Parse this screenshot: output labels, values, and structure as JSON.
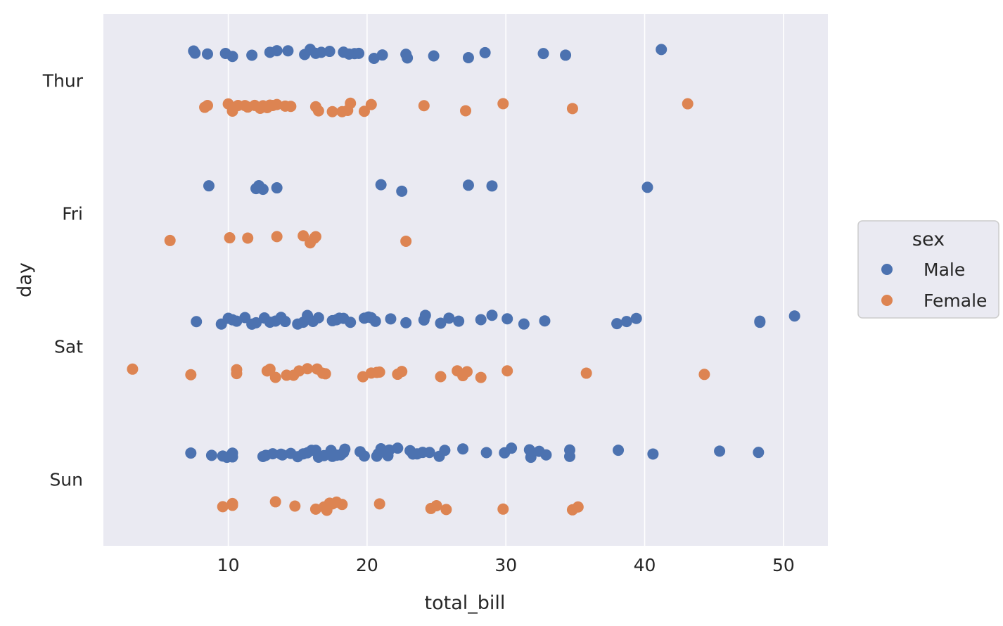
{
  "chart_data": {
    "type": "scatter",
    "subtype": "strip",
    "xlabel": "total_bill",
    "ylabel": "day",
    "xlim": [
      1.0,
      53.2
    ],
    "x_ticks": [
      10,
      20,
      30,
      40,
      50
    ],
    "categories": [
      "Thur",
      "Fri",
      "Sat",
      "Sun"
    ],
    "grid": true,
    "legend": {
      "title": "sex",
      "position": "right"
    },
    "series": [
      {
        "name": "Male",
        "color": "#4c72b0",
        "points": [
          {
            "day": "Thur",
            "x": [
              7.5,
              7.6,
              8.5,
              9.8,
              10.3,
              11.7,
              13.0,
              13.5,
              14.3,
              15.5,
              15.9,
              16.3,
              16.7,
              17.3,
              18.3,
              18.7,
              19.1,
              19.4,
              20.5,
              21.1,
              22.8,
              22.9,
              24.8,
              27.3,
              28.5,
              32.7,
              34.3,
              41.2
            ]
          },
          {
            "day": "Fri",
            "x": [
              8.6,
              12.0,
              12.2,
              12.5,
              13.5,
              21.0,
              22.5,
              27.3,
              29.0,
              40.2
            ]
          },
          {
            "day": "Sat",
            "x": [
              7.7,
              9.5,
              10.0,
              10.3,
              10.6,
              11.2,
              11.7,
              12.0,
              12.6,
              13.0,
              13.4,
              13.8,
              14.1,
              15.0,
              15.4,
              15.7,
              16.1,
              16.5,
              17.5,
              17.8,
              18.0,
              18.3,
              18.8,
              19.8,
              20.1,
              20.3,
              20.6,
              21.7,
              22.8,
              24.1,
              24.2,
              25.3,
              25.9,
              26.6,
              28.2,
              29.0,
              30.1,
              31.3,
              32.8,
              38.0,
              38.7,
              39.4,
              48.3,
              48.3,
              50.8
            ]
          },
          {
            "day": "Sun",
            "x": [
              7.3,
              8.8,
              9.6,
              9.9,
              10.3,
              10.3,
              12.5,
              12.7,
              13.2,
              13.8,
              13.9,
              14.5,
              15.0,
              15.4,
              15.7,
              16.0,
              16.3,
              16.5,
              16.9,
              17.4,
              17.5,
              17.8,
              18.1,
              18.3,
              18.4,
              19.5,
              19.8,
              20.7,
              20.8,
              21.0,
              21.5,
              21.6,
              22.2,
              23.1,
              23.3,
              23.6,
              24.0,
              24.5,
              25.2,
              25.6,
              26.9,
              28.6,
              29.9,
              30.4,
              31.7,
              31.8,
              32.4,
              32.9,
              34.6,
              34.6,
              38.1,
              40.6,
              45.4,
              48.2
            ]
          }
        ]
      },
      {
        "name": "Female",
        "color": "#dd8452",
        "points": [
          {
            "day": "Thur",
            "x": [
              8.3,
              8.5,
              10.0,
              10.3,
              10.7,
              11.2,
              11.4,
              11.9,
              12.3,
              12.5,
              12.8,
              13.0,
              13.2,
              13.5,
              14.1,
              14.5,
              16.3,
              16.5,
              17.5,
              18.2,
              18.6,
              18.8,
              19.8,
              20.3,
              24.1,
              27.1,
              29.8,
              34.8,
              43.1
            ]
          },
          {
            "day": "Fri",
            "x": [
              5.8,
              10.1,
              11.4,
              13.5,
              15.4,
              15.9,
              16.2,
              16.3,
              22.8
            ]
          },
          {
            "day": "Sat",
            "x": [
              3.1,
              7.3,
              10.6,
              10.6,
              12.8,
              13.0,
              13.4,
              14.2,
              14.7,
              15.1,
              15.7,
              16.4,
              16.8,
              17.0,
              19.7,
              20.3,
              20.7,
              20.9,
              22.2,
              22.5,
              25.3,
              26.5,
              26.9,
              27.2,
              28.2,
              30.1,
              35.8,
              44.3
            ]
          },
          {
            "day": "Sun",
            "x": [
              9.6,
              10.3,
              10.3,
              13.4,
              14.8,
              16.3,
              16.9,
              17.1,
              17.3,
              17.5,
              17.8,
              18.2,
              20.9,
              24.6,
              25.0,
              25.7,
              29.8,
              34.8,
              35.2
            ]
          }
        ]
      }
    ]
  }
}
